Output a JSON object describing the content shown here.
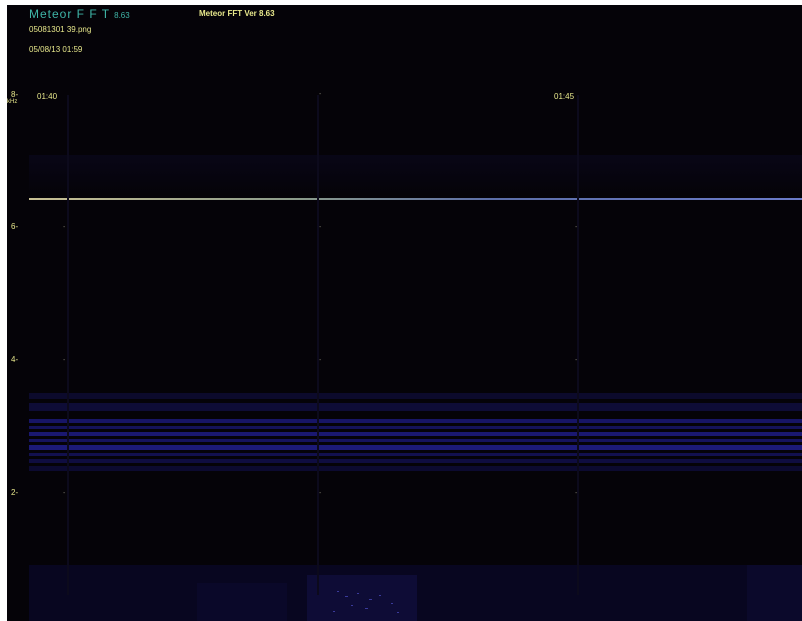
{
  "header": {
    "app_title": "Meteor F F T",
    "app_version": "8.63",
    "sub_title": "Meteor FFT Ver 8.63",
    "file_name": "05081301 39.png",
    "timestamp": "05/08/13 01:59"
  },
  "axis": {
    "y_top": "8-",
    "y_unit": "kHz",
    "y_labels": [
      "6-",
      "4-",
      "2-"
    ],
    "x_labels": [
      "01:40",
      "01:45"
    ],
    "tick_glyph": "-",
    "tick_glyph_right": "-"
  },
  "colors": {
    "background": "#050308",
    "text": "#e8e88c",
    "title": "#3fb6a8",
    "signal_line": "#8a9a8a",
    "noise_band": "#1a1a6a"
  }
}
